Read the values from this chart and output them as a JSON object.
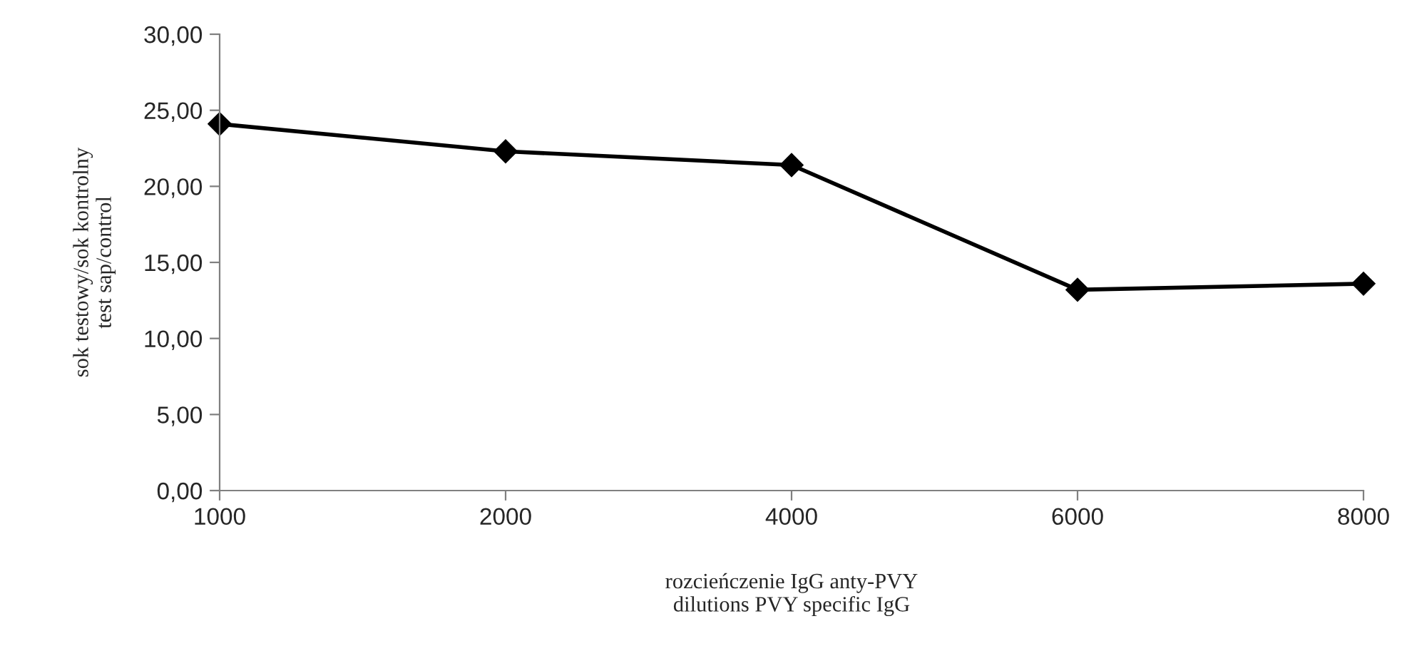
{
  "chart_data": {
    "type": "line",
    "categories": [
      "1000",
      "2000",
      "4000",
      "6000",
      "8000"
    ],
    "series": [
      {
        "color": "#000000",
        "values": [
          24.1,
          22.3,
          21.4,
          13.2,
          13.6
        ]
      }
    ],
    "ylim": [
      0,
      30
    ],
    "yticks": [
      {
        "value": 0,
        "label": "0,00"
      },
      {
        "value": 5,
        "label": "5,00"
      },
      {
        "value": 10,
        "label": "10,00"
      },
      {
        "value": 15,
        "label": "15,00"
      },
      {
        "value": 20,
        "label": "20,00"
      },
      {
        "value": 25,
        "label": "25,00"
      },
      {
        "value": 30,
        "label": "30,00"
      }
    ],
    "xlabel": "rozcieńczenie IgG anty-PVY\ndilutions PVY specific IgG",
    "ylabel": "sok testowy/sok kontrolny\ntest sap/control",
    "marker": "diamond",
    "line_style": "solid"
  }
}
